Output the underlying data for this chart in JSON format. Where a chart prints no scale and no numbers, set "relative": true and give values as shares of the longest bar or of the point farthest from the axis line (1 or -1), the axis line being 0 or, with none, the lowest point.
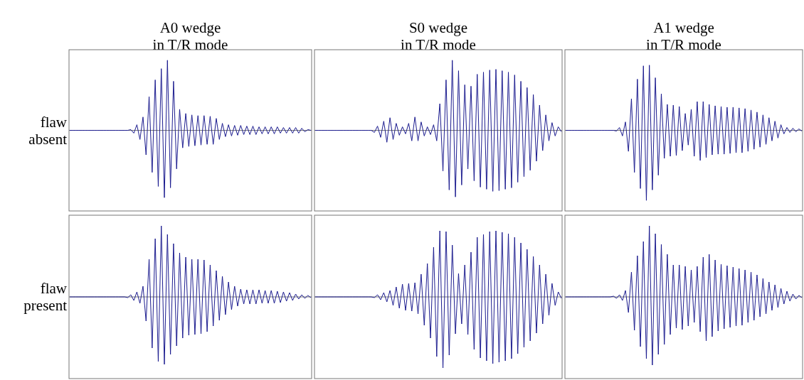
{
  "chart_data": [
    {
      "type": "line",
      "title": "A0 wedge\nin T/R mode",
      "ylabel": "flaw\nabsent",
      "relative": true,
      "categories": [
        null,
        null,
        null,
        null,
        null,
        null,
        null,
        null,
        null,
        null,
        null,
        null,
        null,
        null,
        null,
        null,
        null,
        null,
        null,
        null,
        null,
        null,
        null,
        null,
        null,
        null,
        null,
        null,
        null,
        null,
        null,
        null,
        null,
        null,
        null,
        null,
        null,
        null,
        null,
        null,
        null,
        null,
        null,
        null,
        null,
        null,
        null,
        null,
        null,
        null,
        null,
        null,
        null,
        null,
        null,
        null,
        null,
        null,
        null,
        null,
        null,
        null,
        null,
        null,
        null,
        null,
        null,
        null,
        null,
        null,
        null,
        null,
        null,
        null,
        null,
        null,
        null,
        null,
        null,
        null
      ],
      "series": [
        {
          "color": "#1c1c8f",
          "values": [
            0,
            0,
            0,
            0,
            0,
            0,
            0,
            0,
            0,
            0,
            0,
            0,
            0,
            0,
            0,
            0,
            0,
            0,
            0,
            0,
            0.01,
            -0.04,
            0.08,
            -0.13,
            0.19,
            -0.35,
            0.48,
            -0.6,
            0.72,
            -0.8,
            0.88,
            -0.96,
            1,
            -0.82,
            0.7,
            -0.55,
            0.3,
            -0.25,
            0.24,
            -0.23,
            0.22,
            -0.22,
            0.21,
            -0.21,
            0.21,
            -0.2,
            0.2,
            -0.2,
            0.17,
            -0.13,
            0.1,
            -0.09,
            0.08,
            -0.08,
            0.07,
            -0.07,
            0.07,
            -0.06,
            0.06,
            -0.06,
            0.06,
            -0.06,
            0.05,
            -0.05,
            0.05,
            -0.05,
            0.05,
            -0.05,
            0.05,
            -0.04,
            0.04,
            -0.04,
            0.04,
            -0.04,
            0.04,
            -0.04,
            0.03,
            -0.02,
            0.01,
            0
          ]
        }
      ]
    },
    {
      "type": "line",
      "title": "S0 wedge\nin T/R mode",
      "relative": true,
      "categories": [
        null,
        null,
        null,
        null,
        null,
        null,
        null,
        null,
        null,
        null,
        null,
        null,
        null,
        null,
        null,
        null,
        null,
        null,
        null,
        null,
        null,
        null,
        null,
        null,
        null,
        null,
        null,
        null,
        null,
        null,
        null,
        null,
        null,
        null,
        null,
        null,
        null,
        null,
        null,
        null,
        null,
        null,
        null,
        null,
        null,
        null,
        null,
        null,
        null,
        null,
        null,
        null,
        null,
        null,
        null,
        null,
        null,
        null,
        null,
        null,
        null,
        null,
        null,
        null,
        null,
        null,
        null,
        null,
        null,
        null,
        null,
        null,
        null,
        null,
        null,
        null,
        null,
        null,
        null,
        null
      ],
      "series": [
        {
          "color": "#1c1c8f",
          "values": [
            0,
            0,
            0,
            0,
            0,
            0,
            0,
            0,
            0,
            0,
            0,
            0,
            0,
            0,
            0,
            0,
            0,
            0,
            0,
            -0.03,
            0.06,
            -0.1,
            0.13,
            -0.17,
            0.18,
            -0.13,
            0.1,
            -0.07,
            0.05,
            -0.05,
            0.1,
            -0.15,
            0.19,
            -0.15,
            0.12,
            -0.08,
            0.05,
            -0.06,
            0.08,
            -0.15,
            0.38,
            -0.58,
            0.72,
            -0.85,
            1,
            -0.95,
            0.85,
            -0.78,
            0.65,
            -0.55,
            0.63,
            -0.72,
            0.8,
            -0.81,
            0.83,
            -0.84,
            0.86,
            -0.87,
            0.87,
            -0.86,
            0.85,
            -0.84,
            0.83,
            -0.82,
            0.79,
            -0.74,
            0.7,
            -0.66,
            0.61,
            -0.57,
            0.51,
            -0.44,
            0.36,
            -0.29,
            0.22,
            -0.15,
            0.11,
            -0.08,
            0.05,
            -0.02
          ]
        }
      ]
    },
    {
      "type": "line",
      "title": "A1 wedge\nin T/R mode",
      "relative": true,
      "categories": [
        null,
        null,
        null,
        null,
        null,
        null,
        null,
        null,
        null,
        null,
        null,
        null,
        null,
        null,
        null,
        null,
        null,
        null,
        null,
        null,
        null,
        null,
        null,
        null,
        null,
        null,
        null,
        null,
        null,
        null,
        null,
        null,
        null,
        null,
        null,
        null,
        null,
        null,
        null,
        null,
        null,
        null,
        null,
        null,
        null,
        null,
        null,
        null,
        null,
        null,
        null,
        null,
        null,
        null,
        null,
        null,
        null,
        null,
        null,
        null,
        null,
        null,
        null,
        null,
        null,
        null,
        null,
        null,
        null,
        null,
        null,
        null,
        null,
        null,
        null,
        null,
        null,
        null,
        null,
        null
      ],
      "series": [
        {
          "color": "#1c1c8f",
          "values": [
            0,
            0,
            0,
            0,
            0,
            0,
            0,
            0,
            0,
            0,
            0,
            0,
            0,
            0,
            0,
            0,
            0,
            -0.01,
            0.04,
            -0.08,
            0.12,
            -0.3,
            0.45,
            -0.6,
            0.73,
            -0.83,
            0.92,
            -1,
            0.93,
            -0.85,
            0.75,
            -0.64,
            0.52,
            -0.4,
            0.37,
            -0.37,
            0.36,
            -0.36,
            0.34,
            -0.29,
            0.24,
            -0.21,
            0.3,
            -0.37,
            0.41,
            -0.43,
            0.41,
            -0.39,
            0.37,
            -0.35,
            0.35,
            -0.34,
            0.34,
            -0.34,
            0.33,
            -0.33,
            0.33,
            -0.32,
            0.32,
            -0.32,
            0.31,
            -0.3,
            0.29,
            -0.27,
            0.26,
            -0.24,
            0.22,
            -0.2,
            0.18,
            -0.15,
            0.13,
            -0.11,
            0.08,
            -0.05,
            0.04,
            -0.03,
            0.03,
            -0.02,
            0.02,
            -0.01
          ]
        }
      ]
    },
    {
      "type": "line",
      "ylabel": "flaw\npresent",
      "relative": true,
      "categories": [
        null,
        null,
        null,
        null,
        null,
        null,
        null,
        null,
        null,
        null,
        null,
        null,
        null,
        null,
        null,
        null,
        null,
        null,
        null,
        null,
        null,
        null,
        null,
        null,
        null,
        null,
        null,
        null,
        null,
        null,
        null,
        null,
        null,
        null,
        null,
        null,
        null,
        null,
        null,
        null,
        null,
        null,
        null,
        null,
        null,
        null,
        null,
        null,
        null,
        null,
        null,
        null,
        null,
        null,
        null,
        null,
        null,
        null,
        null,
        null,
        null,
        null,
        null,
        null,
        null,
        null,
        null,
        null,
        null,
        null,
        null,
        null,
        null,
        null,
        null,
        null,
        null,
        null,
        null,
        null
      ],
      "series": [
        {
          "color": "#1c1c8f",
          "values": [
            0,
            0,
            0,
            0,
            0,
            0,
            0,
            0,
            0,
            0,
            0,
            0,
            0,
            0,
            0,
            0,
            0,
            0,
            0,
            -0.01,
            0.03,
            -0.05,
            0.07,
            -0.09,
            0.15,
            -0.34,
            0.53,
            -0.72,
            0.82,
            -0.91,
            1,
            -0.95,
            0.88,
            -0.81,
            0.75,
            -0.69,
            0.62,
            -0.58,
            0.56,
            -0.54,
            0.53,
            -0.53,
            0.53,
            -0.52,
            0.52,
            -0.49,
            0.45,
            -0.41,
            0.37,
            -0.33,
            0.29,
            -0.25,
            0.21,
            -0.18,
            0.15,
            -0.13,
            0.11,
            -0.1,
            0.1,
            -0.1,
            0.1,
            -0.1,
            0.1,
            -0.09,
            0.09,
            -0.09,
            0.09,
            -0.09,
            0.08,
            -0.08,
            0.07,
            -0.06,
            0.06,
            -0.05,
            0.04,
            -0.03,
            0.03,
            -0.02,
            0.02,
            -0.01
          ]
        }
      ]
    },
    {
      "type": "line",
      "relative": true,
      "categories": [
        null,
        null,
        null,
        null,
        null,
        null,
        null,
        null,
        null,
        null,
        null,
        null,
        null,
        null,
        null,
        null,
        null,
        null,
        null,
        null,
        null,
        null,
        null,
        null,
        null,
        null,
        null,
        null,
        null,
        null,
        null,
        null,
        null,
        null,
        null,
        null,
        null,
        null,
        null,
        null,
        null,
        null,
        null,
        null,
        null,
        null,
        null,
        null,
        null,
        null,
        null,
        null,
        null,
        null,
        null,
        null,
        null,
        null,
        null,
        null,
        null,
        null,
        null,
        null,
        null,
        null,
        null,
        null,
        null,
        null,
        null,
        null,
        null,
        null,
        null,
        null,
        null,
        null,
        null,
        null
      ],
      "series": [
        {
          "color": "#1c1c8f",
          "values": [
            0,
            0,
            0,
            0,
            0,
            0,
            0,
            0,
            0,
            0,
            0,
            0,
            0,
            0,
            0,
            0,
            0,
            0,
            0,
            -0.01,
            0.03,
            -0.04,
            0.06,
            -0.07,
            0.09,
            -0.12,
            0.14,
            -0.16,
            0.18,
            -0.19,
            0.19,
            -0.2,
            0.2,
            -0.24,
            0.32,
            -0.4,
            0.47,
            -0.58,
            0.7,
            -0.84,
            0.93,
            -1,
            0.92,
            -0.82,
            0.73,
            -0.52,
            0.33,
            -0.38,
            0.45,
            -0.53,
            0.63,
            -0.74,
            0.84,
            -0.86,
            0.88,
            -0.9,
            0.92,
            -0.94,
            0.93,
            -0.92,
            0.91,
            -0.9,
            0.89,
            -0.87,
            0.84,
            -0.8,
            0.76,
            -0.71,
            0.67,
            -0.62,
            0.57,
            -0.51,
            0.45,
            -0.38,
            0.32,
            -0.26,
            0.19,
            -0.12,
            0.07,
            -0.02
          ]
        }
      ]
    },
    {
      "type": "line",
      "relative": true,
      "categories": [
        null,
        null,
        null,
        null,
        null,
        null,
        null,
        null,
        null,
        null,
        null,
        null,
        null,
        null,
        null,
        null,
        null,
        null,
        null,
        null,
        null,
        null,
        null,
        null,
        null,
        null,
        null,
        null,
        null,
        null,
        null,
        null,
        null,
        null,
        null,
        null,
        null,
        null,
        null,
        null,
        null,
        null,
        null,
        null,
        null,
        null,
        null,
        null,
        null,
        null,
        null,
        null,
        null,
        null,
        null,
        null,
        null,
        null,
        null,
        null,
        null,
        null,
        null,
        null,
        null,
        null,
        null,
        null,
        null,
        null,
        null,
        null,
        null,
        null,
        null,
        null,
        null,
        null,
        null,
        null
      ],
      "series": [
        {
          "color": "#1c1c8f",
          "values": [
            0,
            0,
            0,
            0,
            0,
            0,
            0,
            0,
            0,
            0,
            0,
            0,
            0,
            0,
            0,
            0,
            0.01,
            -0.02,
            0.03,
            -0.05,
            0.09,
            -0.22,
            0.35,
            -0.47,
            0.58,
            -0.7,
            0.78,
            -0.87,
            1,
            -0.96,
            0.89,
            -0.81,
            0.74,
            -0.67,
            0.6,
            -0.53,
            0.45,
            -0.44,
            0.45,
            -0.46,
            0.43,
            -0.41,
            0.38,
            -0.36,
            0.43,
            -0.49,
            0.56,
            -0.62,
            0.6,
            -0.56,
            0.52,
            -0.48,
            0.46,
            -0.45,
            0.44,
            -0.43,
            0.42,
            -0.41,
            0.4,
            -0.4,
            0.38,
            -0.36,
            0.35,
            -0.33,
            0.31,
            -0.28,
            0.26,
            -0.24,
            0.21,
            -0.19,
            0.17,
            -0.15,
            0.12,
            -0.1,
            0.08,
            -0.06,
            0.04,
            -0.03,
            0.02,
            -0.01
          ]
        }
      ]
    }
  ]
}
